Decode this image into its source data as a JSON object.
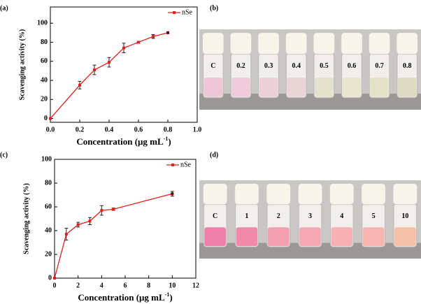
{
  "chart_data": [
    {
      "type": "line",
      "panel_label": "(a)",
      "x_label": [
        "Concentration (μg mL",
        "-1",
        ")"
      ],
      "y_label": "Scavenging activity (%)",
      "x": [
        0,
        0.2,
        0.3,
        0.4,
        0.5,
        0.6,
        0.7,
        0.8
      ],
      "series": [
        {
          "name": "nSe",
          "color": "#e0201b",
          "values": [
            0,
            35,
            51,
            59,
            74,
            80,
            86,
            90
          ],
          "errors": [
            0,
            4,
            5,
            5,
            5,
            1,
            2,
            0
          ]
        }
      ],
      "xlim": [
        0,
        1.0
      ],
      "xticks": [
        {
          "value": 0,
          "label": "0.0"
        },
        {
          "value": 0.2,
          "label": "0.2"
        },
        {
          "value": 0.4,
          "label": "0.4"
        },
        {
          "value": 0.6,
          "label": "0.6"
        },
        {
          "value": 0.8,
          "label": "0.8"
        },
        {
          "value": 1.0,
          "label": "1.0"
        }
      ],
      "ylim": [
        -4,
        117
      ],
      "yticks": [
        0,
        20,
        40,
        60,
        80,
        100
      ]
    },
    {
      "type": "line",
      "panel_label": "(c)",
      "x_label": [
        "Concentration (μg mL",
        "-1",
        ")"
      ],
      "y_label": "Scavenging activity (%)",
      "x": [
        0,
        1,
        2,
        3,
        4,
        5,
        10
      ],
      "series": [
        {
          "name": "nSe",
          "color": "#e0201b",
          "values": [
            0,
            37,
            45,
            48,
            57,
            58,
            71
          ],
          "errors": [
            0,
            5,
            2,
            3,
            4,
            1,
            2
          ]
        }
      ],
      "xlim": [
        0,
        12
      ],
      "xticks": [
        0,
        2,
        4,
        6,
        8,
        10,
        12
      ],
      "ylim": [
        0,
        100
      ],
      "yticks": [
        0,
        20,
        40,
        60,
        80,
        100
      ]
    }
  ],
  "photos": [
    {
      "panel_label": "(b)",
      "vials": [
        {
          "label": "C",
          "color": "#efc6d6"
        },
        {
          "label": "0.2",
          "color": "#edcbd8"
        },
        {
          "label": "0.3",
          "color": "#ebd0d8"
        },
        {
          "label": "0.4",
          "color": "#e9d4d6"
        },
        {
          "label": "0.5",
          "color": "#e4e2cc"
        },
        {
          "label": "0.6",
          "color": "#e7e6cc"
        },
        {
          "label": "0.7",
          "color": "#e4e3c8"
        },
        {
          "label": "0.8",
          "color": "#dedcc0"
        }
      ]
    },
    {
      "panel_label": "(d)",
      "vials": [
        {
          "label": "C",
          "color": "#f07fa8"
        },
        {
          "label": "1",
          "color": "#f18aaa"
        },
        {
          "label": "2",
          "color": "#f39eb1"
        },
        {
          "label": "3",
          "color": "#f4a9b2"
        },
        {
          "label": "4",
          "color": "#f6b1b0"
        },
        {
          "label": "5",
          "color": "#f7b4ae"
        },
        {
          "label": "10",
          "color": "#f6c0a8"
        }
      ]
    }
  ]
}
